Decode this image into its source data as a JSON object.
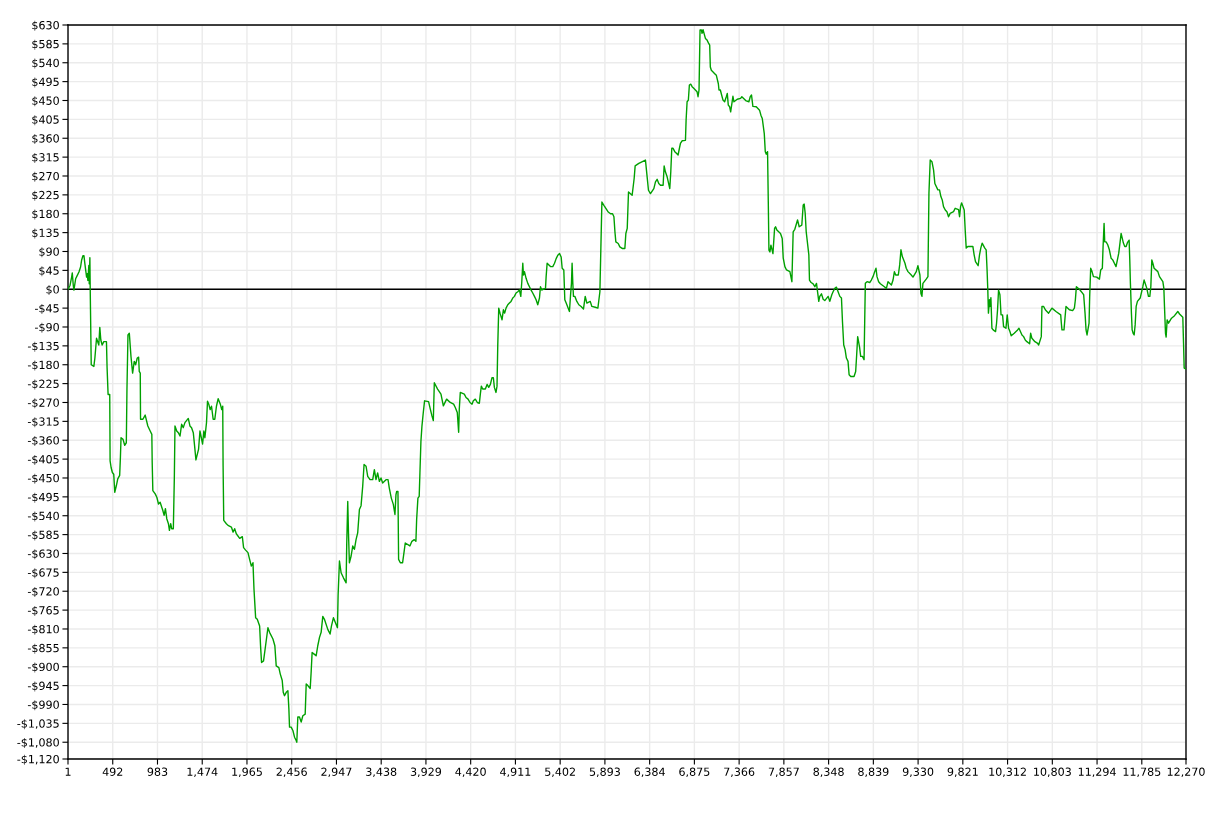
{
  "chart_data": {
    "type": "line",
    "x": [
      1,
      23,
      41,
      48,
      59,
      66,
      85,
      103,
      121,
      139,
      150,
      165,
      176,
      186,
      205,
      212,
      219,
      230,
      234,
      241,
      245,
      248,
      256,
      285,
      296,
      314,
      339,
      350,
      361,
      376,
      394,
      423,
      430,
      441,
      459,
      463,
      474,
      488,
      503,
      514,
      532,
      547,
      568,
      576,
      583,
      605,
      623,
      641,
      648,
      659,
      674,
      692,
      710,
      728,
      743,
      761,
      776,
      783,
      794,
      797,
      823,
      848,
      877,
      903,
      921,
      925,
      932,
      958,
      976,
      994,
      1012,
      1041,
      1056,
      1070,
      1085,
      1103,
      1114,
      1128,
      1139,
      1157,
      1168,
      1175,
      1194,
      1212,
      1230,
      1248,
      1266,
      1284,
      1321,
      1339,
      1357,
      1376,
      1390,
      1405,
      1434,
      1449,
      1478,
      1492,
      1503,
      1521,
      1532,
      1547,
      1561,
      1576,
      1594,
      1612,
      1630,
      1649,
      1674,
      1688,
      1699,
      1703,
      1710,
      1739,
      1757,
      1794,
      1812,
      1830,
      1848,
      1885,
      1914,
      1928,
      1950,
      1976,
      1994,
      2013,
      2031,
      2042,
      2060,
      2078,
      2104,
      2114,
      2125,
      2147,
      2169,
      2195,
      2213,
      2250,
      2271,
      2286,
      2315,
      2330,
      2352,
      2363,
      2377,
      2396,
      2414,
      2425,
      2432,
      2450,
      2469,
      2487,
      2505,
      2512,
      2523,
      2541,
      2560,
      2578,
      2604,
      2615,
      2633,
      2659,
      2670,
      2680,
      2702,
      2724,
      2742,
      2761,
      2779,
      2797,
      2815,
      2852,
      2877,
      2892,
      2914,
      2936,
      2958,
      2965,
      2980,
      2998,
      3024,
      3053,
      3060,
      3071,
      3079,
      3089,
      3108,
      3126,
      3144,
      3162,
      3180,
      3199,
      3217,
      3235,
      3250,
      3272,
      3290,
      3316,
      3345,
      3363,
      3381,
      3399,
      3418,
      3436,
      3454,
      3491,
      3513,
      3527,
      3549,
      3571,
      3589,
      3600,
      3608,
      3622,
      3629,
      3648,
      3673,
      3688,
      3702,
      3753,
      3775,
      3801,
      3819,
      3827,
      3841,
      3855,
      3863,
      3874,
      3885,
      3900,
      3914,
      3958,
      3977,
      3995,
      4010,
      4021,
      4057,
      4094,
      4120,
      4156,
      4196,
      4233,
      4251,
      4273,
      4288,
      4295,
      4306,
      4350,
      4369,
      4391,
      4413,
      4435,
      4449,
      4471,
      4493,
      4515,
      4526,
      4537,
      4552,
      4581,
      4600,
      4618,
      4636,
      4654,
      4669,
      4680,
      4698,
      4709,
      4717,
      4728,
      4742,
      4764,
      4779,
      4793,
      4808,
      4827,
      4845,
      4863,
      4882,
      4900,
      4918,
      4937,
      4955,
      4970,
      4981,
      4992,
      4999,
      5010,
      5028,
      5047,
      5065,
      5083,
      5101,
      5120,
      5138,
      5156,
      5175,
      5186,
      5200,
      5219,
      5241,
      5248,
      5259,
      5296,
      5321,
      5340,
      5358,
      5376,
      5395,
      5413,
      5424,
      5442,
      5453,
      5468,
      5504,
      5515,
      5526,
      5533,
      5541,
      5548,
      5563,
      5585,
      5607,
      5632,
      5658,
      5677,
      5695,
      5732,
      5750,
      5787,
      5816,
      5838,
      5849,
      5860,
      5882,
      5930,
      5955,
      5977,
      5992,
      6003,
      6013,
      6039,
      6057,
      6086,
      6112,
      6123,
      6138,
      6152,
      6192,
      6214,
      6225,
      6265,
      6338,
      6349,
      6360,
      6371,
      6393,
      6430,
      6448,
      6466,
      6484,
      6503,
      6532,
      6543,
      6557,
      6576,
      6605,
      6616,
      6627,
      6641,
      6660,
      6678,
      6696,
      6707,
      6722,
      6740,
      6777,
      6784,
      6795,
      6809,
      6820,
      6835,
      6850,
      6868,
      6904,
      6915,
      6926,
      6937,
      6952,
      6959,
      6970,
      6981,
      6996,
      7014,
      7032,
      7043,
      7050,
      7061,
      7080,
      7098,
      7116,
      7138,
      7145,
      7160,
      7174,
      7189,
      7207,
      7225,
      7236,
      7247,
      7262,
      7273,
      7284,
      7298,
      7309,
      7345,
      7382,
      7396,
      7444,
      7473,
      7488,
      7502,
      7517,
      7554,
      7572,
      7590,
      7605,
      7620,
      7642,
      7653,
      7664,
      7678,
      7686,
      7693,
      7704,
      7715,
      7737,
      7755,
      7766,
      7780,
      7820,
      7839,
      7850,
      7868,
      7886,
      7923,
      7945,
      7952,
      7959,
      7977,
      8007,
      8025,
      8054,
      8069,
      8080,
      8091,
      8102,
      8131,
      8138,
      8156,
      8178,
      8197,
      8215,
      8229,
      8240,
      8251,
      8270,
      8288,
      8306,
      8343,
      8361,
      8383,
      8397,
      8416,
      8434,
      8452,
      8471,
      8489,
      8500,
      8514,
      8529,
      8543,
      8561,
      8573,
      8591,
      8627,
      8645,
      8656,
      8667,
      8689,
      8700,
      8719,
      8737,
      8744,
      8751,
      8770,
      8799,
      8817,
      8835,
      8854,
      8868,
      8879,
      8897,
      8916,
      8960,
      8982,
      9000,
      9037,
      9055,
      9070,
      9084,
      9113,
      9128,
      9142,
      9157,
      9186,
      9200,
      9219,
      9255,
      9274,
      9310,
      9328,
      9350,
      9361,
      9372,
      9383,
      9419,
      9438,
      9449,
      9463,
      9482,
      9500,
      9514,
      9547,
      9565,
      9580,
      9595,
      9609,
      9628,
      9646,
      9664,
      9682,
      9719,
      9737,
      9774,
      9785,
      9796,
      9807,
      9836,
      9847,
      9858,
      9876,
      9931,
      9945,
      9960,
      9989,
      10004,
      10018,
      10033,
      10062,
      10077,
      10087,
      10095,
      10102,
      10113,
      10118,
      10129,
      10140,
      10154,
      10180,
      10191,
      10202,
      10213,
      10228,
      10240,
      10257,
      10268,
      10294,
      10308,
      10323,
      10338,
      10352,
      10385,
      10422,
      10437,
      10470,
      10488,
      10506,
      10524,
      10554,
      10565,
      10579,
      10612,
      10642,
      10653,
      10682,
      10689,
      10708,
      10726,
      10744,
      10762,
      10799,
      10843,
      10895,
      10902,
      10909,
      10931,
      10942,
      10953,
      10990,
      11026,
      11045,
      11056,
      11067,
      11100,
      11136,
      11147,
      11162,
      11173,
      11184,
      11206,
      11213,
      11224,
      11239,
      11254,
      11290,
      11320,
      11334,
      11352,
      11360,
      11371,
      11378,
      11393,
      11411,
      11429,
      11448,
      11466,
      11484,
      11502,
      11532,
      11547,
      11558,
      11583,
      11598,
      11613,
      11627,
      11646,
      11653,
      11660,
      11671,
      11679,
      11690,
      11701,
      11712,
      11723,
      11737,
      11767,
      11796,
      11810,
      11840,
      11858,
      11873,
      11884,
      11895,
      11906,
      11920,
      11961,
      11979,
      12016,
      12027,
      12034,
      12045,
      12052,
      12063,
      12078,
      12111,
      12144,
      12180,
      12199,
      12235,
      12243,
      12250,
      12270
    ],
    "series": [
      {
        "color": "#00a000",
        "values": [
          0,
          9,
          29,
          39,
          9,
          -2,
          25,
          33,
          41,
          53,
          69,
          80,
          80,
          61,
          29,
          37,
          21,
          57,
          13,
          75,
          -2,
          -51,
          -180,
          -184,
          -164,
          -117,
          -133,
          -91,
          -121,
          -133,
          -125,
          -125,
          -188,
          -251,
          -251,
          -409,
          -425,
          -437,
          -441,
          -484,
          -468,
          -452,
          -444,
          -401,
          -354,
          -358,
          -372,
          -366,
          -239,
          -109,
          -105,
          -160,
          -200,
          -172,
          -180,
          -164,
          -162,
          -196,
          -200,
          -310,
          -310,
          -300,
          -326,
          -338,
          -346,
          -413,
          -480,
          -488,
          -496,
          -512,
          -508,
          -527,
          -539,
          -523,
          -547,
          -559,
          -575,
          -559,
          -571,
          -571,
          -448,
          -326,
          -338,
          -342,
          -350,
          -322,
          -330,
          -318,
          -308,
          -326,
          -330,
          -342,
          -373,
          -407,
          -381,
          -338,
          -369,
          -338,
          -354,
          -318,
          -267,
          -275,
          -287,
          -279,
          -310,
          -310,
          -279,
          -261,
          -275,
          -287,
          -279,
          -421,
          -551,
          -559,
          -563,
          -567,
          -579,
          -571,
          -583,
          -594,
          -590,
          -616,
          -622,
          -628,
          -644,
          -660,
          -652,
          -715,
          -783,
          -787,
          -803,
          -850,
          -890,
          -886,
          -850,
          -807,
          -818,
          -834,
          -850,
          -898,
          -902,
          -917,
          -933,
          -961,
          -969,
          -961,
          -957,
          -1001,
          -1044,
          -1044,
          -1052,
          -1068,
          -1076,
          -1080,
          -1020,
          -1020,
          -1032,
          -1017,
          -1013,
          -941,
          -945,
          -952,
          -910,
          -866,
          -870,
          -874,
          -850,
          -830,
          -818,
          -780,
          -787,
          -811,
          -822,
          -803,
          -783,
          -795,
          -807,
          -731,
          -648,
          -676,
          -688,
          -700,
          -605,
          -506,
          -581,
          -652,
          -636,
          -612,
          -620,
          -597,
          -581,
          -525,
          -516,
          -470,
          -418,
          -422,
          -446,
          -454,
          -454,
          -430,
          -454,
          -438,
          -458,
          -450,
          -462,
          -454,
          -454,
          -474,
          -498,
          -513,
          -537,
          -490,
          -482,
          -482,
          -644,
          -652,
          -652,
          -628,
          -605,
          -612,
          -601,
          -597,
          -601,
          -549,
          -498,
          -494,
          -438,
          -363,
          -327,
          -294,
          -266,
          -268,
          -286,
          -302,
          -313,
          -223,
          -238,
          -250,
          -278,
          -262,
          -270,
          -274,
          -282,
          -294,
          -341,
          -286,
          -246,
          -250,
          -258,
          -262,
          -270,
          -274,
          -266,
          -262,
          -270,
          -272,
          -250,
          -231,
          -238,
          -238,
          -227,
          -234,
          -227,
          -211,
          -211,
          -234,
          -246,
          -231,
          -136,
          -45,
          -57,
          -73,
          -49,
          -57,
          -45,
          -37,
          -33,
          -29,
          -21,
          -17,
          -9,
          -6,
          -2,
          -17,
          18,
          62,
          34,
          42,
          26,
          14,
          6,
          -2,
          -9,
          -17,
          -25,
          -37,
          -21,
          6,
          -2,
          0,
          2,
          30,
          62,
          54,
          54,
          62,
          73,
          81,
          85,
          77,
          50,
          46,
          -25,
          -33,
          -53,
          -17,
          14,
          62,
          14,
          -17,
          -17,
          -29,
          -37,
          -41,
          -47,
          -17,
          -33,
          -29,
          -41,
          -43,
          -45,
          -6,
          101,
          208,
          200,
          184,
          180,
          180,
          173,
          137,
          113,
          109,
          101,
          97,
          97,
          133,
          145,
          232,
          224,
          264,
          294,
          300,
          308,
          284,
          260,
          236,
          228,
          240,
          256,
          262,
          252,
          248,
          248,
          294,
          280,
          268,
          240,
          280,
          336,
          336,
          328,
          324,
          320,
          332,
          348,
          354,
          355,
          403,
          447,
          451,
          487,
          489,
          483,
          479,
          471,
          459,
          475,
          618,
          618,
          610,
          619,
          610,
          598,
          594,
          586,
          582,
          530,
          522,
          518,
          514,
          510,
          490,
          475,
          475,
          463,
          451,
          447,
          459,
          467,
          439,
          435,
          423,
          439,
          460,
          447,
          453,
          455,
          459,
          449,
          447,
          459,
          463,
          436,
          435,
          431,
          427,
          415,
          407,
          371,
          328,
          322,
          328,
          208,
          93,
          89,
          105,
          85,
          145,
          149,
          141,
          133,
          121,
          74,
          54,
          46,
          42,
          18,
          78,
          137,
          143,
          165,
          149,
          153,
          201,
          203,
          181,
          137,
          82,
          22,
          16,
          13,
          6,
          14,
          -10,
          -29,
          -17,
          -11,
          -24,
          -27,
          -17,
          -29,
          -13,
          -6,
          2,
          5,
          -6,
          -17,
          -21,
          -77,
          -133,
          -144,
          -164,
          -172,
          -204,
          -208,
          -208,
          -196,
          -156,
          -113,
          -140,
          -160,
          -160,
          -168,
          -77,
          14,
          18,
          16,
          22,
          30,
          42,
          50,
          30,
          18,
          13,
          6,
          2,
          18,
          10,
          22,
          42,
          34,
          34,
          58,
          94,
          78,
          62,
          50,
          42,
          34,
          29,
          42,
          56,
          34,
          -10,
          -17,
          14,
          24,
          30,
          229,
          308,
          304,
          284,
          252,
          237,
          237,
          221,
          213,
          197,
          189,
          185,
          173,
          181,
          185,
          193,
          190,
          173,
          197,
          206,
          189,
          141,
          98,
          102,
          102,
          82,
          66,
          56,
          82,
          98,
          110,
          98,
          94,
          46,
          -2,
          -57,
          -25,
          -41,
          -20,
          -93,
          -97,
          -101,
          -81,
          -49,
          -2,
          -13,
          -61,
          -61,
          -89,
          -93,
          -61,
          -93,
          -101,
          -111,
          -105,
          -97,
          -93,
          -109,
          -113,
          -121,
          -125,
          -130,
          -105,
          -117,
          -125,
          -129,
          -133,
          -113,
          -41,
          -41,
          -49,
          -53,
          -57,
          -45,
          -53,
          -61,
          -81,
          -97,
          -97,
          -69,
          -41,
          -49,
          -51,
          -45,
          -25,
          6,
          0,
          -10,
          -13,
          -57,
          -97,
          -109,
          -81,
          -17,
          50,
          42,
          30,
          29,
          24,
          46,
          50,
          102,
          157,
          113,
          113,
          106,
          94,
          74,
          70,
          62,
          54,
          86,
          113,
          133,
          110,
          102,
          102,
          111,
          117,
          70,
          14,
          -57,
          -97,
          -105,
          -109,
          -85,
          -41,
          -29,
          -21,
          6,
          22,
          2,
          -17,
          -17,
          6,
          70,
          62,
          50,
          42,
          30,
          18,
          2,
          -41,
          -105,
          -114,
          -73,
          -81,
          -69,
          -63,
          -53,
          -59,
          -67,
          -129,
          -188,
          -190
        ]
      }
    ],
    "xlim": [
      1,
      12270
    ],
    "xticks": [
      1,
      492,
      983,
      {
        "value": 1474,
        "label": "1,474"
      },
      {
        "value": 1965,
        "label": "1,965"
      },
      {
        "value": 2456,
        "label": "2,456"
      },
      {
        "value": 2947,
        "label": "2,947"
      },
      {
        "value": 3438,
        "label": "3,438"
      },
      {
        "value": 3929,
        "label": "3,929"
      },
      {
        "value": 4420,
        "label": "4,420"
      },
      {
        "value": 4911,
        "label": "4,911"
      },
      {
        "value": 5402,
        "label": "5,402"
      },
      {
        "value": 5893,
        "label": "5,893"
      },
      {
        "value": 6384,
        "label": "6,384"
      },
      {
        "value": 6875,
        "label": "6,875"
      },
      {
        "value": 7366,
        "label": "7,366"
      },
      {
        "value": 7857,
        "label": "7,857"
      },
      {
        "value": 8348,
        "label": "8,348"
      },
      {
        "value": 8839,
        "label": "8,839"
      },
      {
        "value": 9330,
        "label": "9,330"
      },
      {
        "value": 9821,
        "label": "9,821"
      },
      {
        "value": 10312,
        "label": "10,312"
      },
      {
        "value": 10803,
        "label": "10,803"
      },
      {
        "value": 11294,
        "label": "11,294"
      },
      {
        "value": 11785,
        "label": "11,785"
      },
      {
        "value": 12270,
        "label": "12,270"
      }
    ],
    "ylim": [
      -1120,
      630
    ],
    "yticks": [
      {
        "value": 630,
        "label": "$630"
      },
      {
        "value": 585,
        "label": "$585"
      },
      {
        "value": 540,
        "label": "$540"
      },
      {
        "value": 495,
        "label": "$495"
      },
      {
        "value": 450,
        "label": "$450"
      },
      {
        "value": 405,
        "label": "$405"
      },
      {
        "value": 360,
        "label": "$360"
      },
      {
        "value": 315,
        "label": "$315"
      },
      {
        "value": 270,
        "label": "$270"
      },
      {
        "value": 225,
        "label": "$225"
      },
      {
        "value": 180,
        "label": "$180"
      },
      {
        "value": 135,
        "label": "$135"
      },
      {
        "value": 90,
        "label": "$90"
      },
      {
        "value": 45,
        "label": "$45"
      },
      {
        "value": 0,
        "label": "$0"
      },
      {
        "value": -45,
        "label": "-$45"
      },
      {
        "value": -90,
        "label": "-$90"
      },
      {
        "value": -135,
        "label": "-$135"
      },
      {
        "value": -180,
        "label": "-$180"
      },
      {
        "value": -225,
        "label": "-$225"
      },
      {
        "value": -270,
        "label": "-$270"
      },
      {
        "value": -315,
        "label": "-$315"
      },
      {
        "value": -360,
        "label": "-$360"
      },
      {
        "value": -405,
        "label": "-$405"
      },
      {
        "value": -450,
        "label": "-$450"
      },
      {
        "value": -495,
        "label": "-$495"
      },
      {
        "value": -540,
        "label": "-$540"
      },
      {
        "value": -585,
        "label": "-$585"
      },
      {
        "value": -630,
        "label": "-$630"
      },
      {
        "value": -675,
        "label": "-$675"
      },
      {
        "value": -720,
        "label": "-$720"
      },
      {
        "value": -765,
        "label": "-$765"
      },
      {
        "value": -810,
        "label": "-$810"
      },
      {
        "value": -855,
        "label": "-$855"
      },
      {
        "value": -900,
        "label": "-$900"
      },
      {
        "value": -945,
        "label": "-$945"
      },
      {
        "value": -990,
        "label": "-$990"
      },
      {
        "value": -1035,
        "label": "-$1,035"
      },
      {
        "value": -1080,
        "label": "-$1,080"
      },
      {
        "value": -1120,
        "label": "-$1,120"
      }
    ],
    "grid": true,
    "ref_lines": [
      {
        "axis": "y",
        "value": 0,
        "color": "#000000"
      }
    ]
  }
}
